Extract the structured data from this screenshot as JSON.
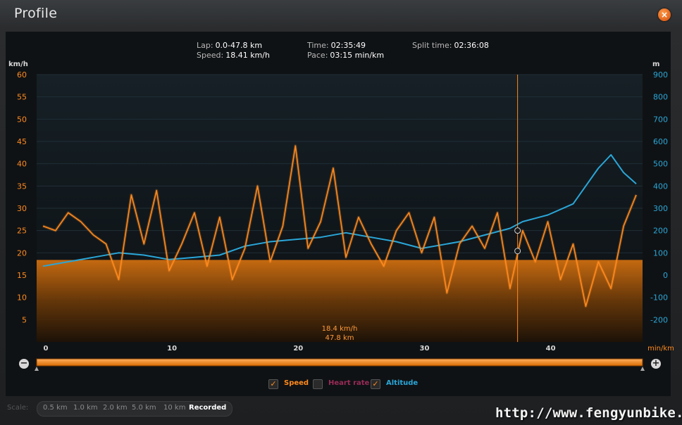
{
  "window": {
    "title": "Profile",
    "close_glyph": "×"
  },
  "summary": {
    "lap_label": "Lap:",
    "lap_value": "0.0-47.8 km",
    "speed_label": "Speed:",
    "speed_value": "18.41 km/h",
    "time_label": "Time:",
    "time_value": "02:35:49",
    "pace_label": "Pace:",
    "pace_value": "03:15 min/km",
    "split_label": "Split time:",
    "split_value": "02:36:08"
  },
  "cursor": {
    "speed": "18.4 km/h",
    "distance": "47.8 km",
    "x": 37.6
  },
  "legend": {
    "speed": "Speed",
    "speed_checked": true,
    "heart_rate": "Heart rate",
    "heart_rate_checked": false,
    "altitude": "Altitude",
    "altitude_checked": true
  },
  "scale": {
    "label": "Scale:",
    "options": [
      "0.5 km",
      "1.0 km",
      "2.0 km",
      "5.0 km",
      "10 km",
      "Recorded"
    ],
    "selected": "Recorded"
  },
  "watermark": "http://www.fengyunbike.com",
  "colors": {
    "speed": "#ff8a1e",
    "altitude": "#2aa6d8",
    "heart_rate": "#c0306a",
    "background": "#0f1214"
  },
  "chart_data": {
    "type": "line",
    "xlabel": "min/km",
    "xlim": [
      -0.5,
      47.5
    ],
    "x_ticks": [
      "0",
      "10",
      "20",
      "30",
      "40"
    ],
    "y_left": {
      "label": "km/h",
      "lim": [
        0,
        60
      ],
      "ticks": [
        "5",
        "10",
        "15",
        "20",
        "25",
        "30",
        "35",
        "40",
        "45",
        "50",
        "55",
        "60"
      ]
    },
    "y_right": {
      "label": "m",
      "lim": [
        -300,
        900
      ],
      "ticks": [
        "-200",
        "-100",
        "0",
        "100",
        "200",
        "300",
        "400",
        "500",
        "600",
        "700",
        "800",
        "900"
      ]
    },
    "average_speed": 18.41,
    "series": [
      {
        "name": "Speed",
        "axis": "left",
        "x": [
          0,
          1,
          2,
          3,
          4,
          5,
          6,
          7,
          8,
          9,
          10,
          11,
          12,
          13,
          14,
          15,
          16,
          17,
          18,
          19,
          20,
          21,
          22,
          23,
          24,
          25,
          26,
          27,
          28,
          29,
          30,
          31,
          32,
          33,
          34,
          35,
          36,
          37,
          38,
          39,
          40,
          41,
          42,
          43,
          44,
          45,
          46,
          47
        ],
        "values": [
          26,
          25,
          29,
          27,
          24,
          22,
          14,
          33,
          22,
          34,
          16,
          22,
          29,
          17,
          28,
          14,
          21,
          35,
          18,
          26,
          44,
          21,
          27,
          39,
          19,
          28,
          22,
          17,
          25,
          29,
          20,
          28,
          11,
          22,
          26,
          21,
          29,
          12,
          25,
          18,
          27,
          14,
          22,
          8,
          18,
          12,
          26,
          33
        ]
      },
      {
        "name": "Altitude",
        "axis": "right",
        "x": [
          0,
          2,
          4,
          6,
          8,
          10,
          12,
          14,
          16,
          18,
          20,
          22,
          24,
          26,
          28,
          30,
          32,
          33,
          35,
          37,
          38,
          40,
          42,
          43,
          44,
          45,
          46,
          47
        ],
        "values": [
          40,
          60,
          80,
          100,
          90,
          70,
          80,
          90,
          130,
          150,
          160,
          170,
          190,
          170,
          150,
          120,
          140,
          150,
          180,
          210,
          240,
          270,
          320,
          400,
          480,
          540,
          460,
          410
        ]
      }
    ]
  }
}
